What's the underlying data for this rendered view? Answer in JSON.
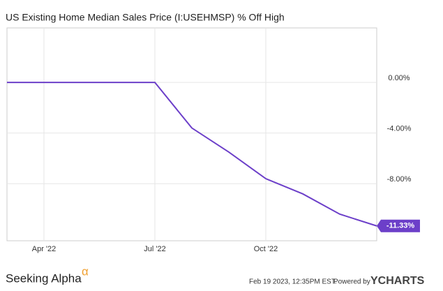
{
  "chart_data": {
    "type": "line",
    "title": "US Existing Home Median Sales Price (I:USEHMSP) % Off High",
    "x": [
      "2022-03",
      "2022-04",
      "2022-05",
      "2022-06",
      "2022-07",
      "2022-08",
      "2022-09",
      "2022-10",
      "2022-11",
      "2022-12",
      "2023-01"
    ],
    "series": [
      {
        "name": "US Existing Home Median Sales Price (I:USEHMSP) % Off High",
        "color": "#6c3fc9",
        "values": [
          0,
          0,
          0,
          0,
          0,
          -3.6,
          -5.5,
          -7.6,
          -8.8,
          -10.4,
          -11.33
        ],
        "value_labels": [
          null,
          null,
          null,
          null,
          null,
          null,
          null,
          null,
          null,
          null,
          "-11.33%"
        ]
      }
    ],
    "xlim": [
      "2022-03",
      "2023-01"
    ],
    "xticks": [
      {
        "value": "2022-04",
        "label": "Apr '22"
      },
      {
        "value": "2022-07",
        "label": "Jul '22"
      },
      {
        "value": "2022-10",
        "label": "Oct '22"
      }
    ],
    "ylim": [
      -12.5,
      4.3
    ],
    "yticks": [
      {
        "value": 0,
        "label": "0.00%"
      },
      {
        "value": -4,
        "label": "-4.00%"
      },
      {
        "value": -8,
        "label": "-8.00%"
      }
    ],
    "grid": true,
    "footer": {
      "brand": "Seeking Alpha",
      "brand_symbol": "α",
      "timestamp": "Feb 19 2023, 12:35PM EST.",
      "powered": "Powered by",
      "provider": "YCHARTS"
    }
  }
}
